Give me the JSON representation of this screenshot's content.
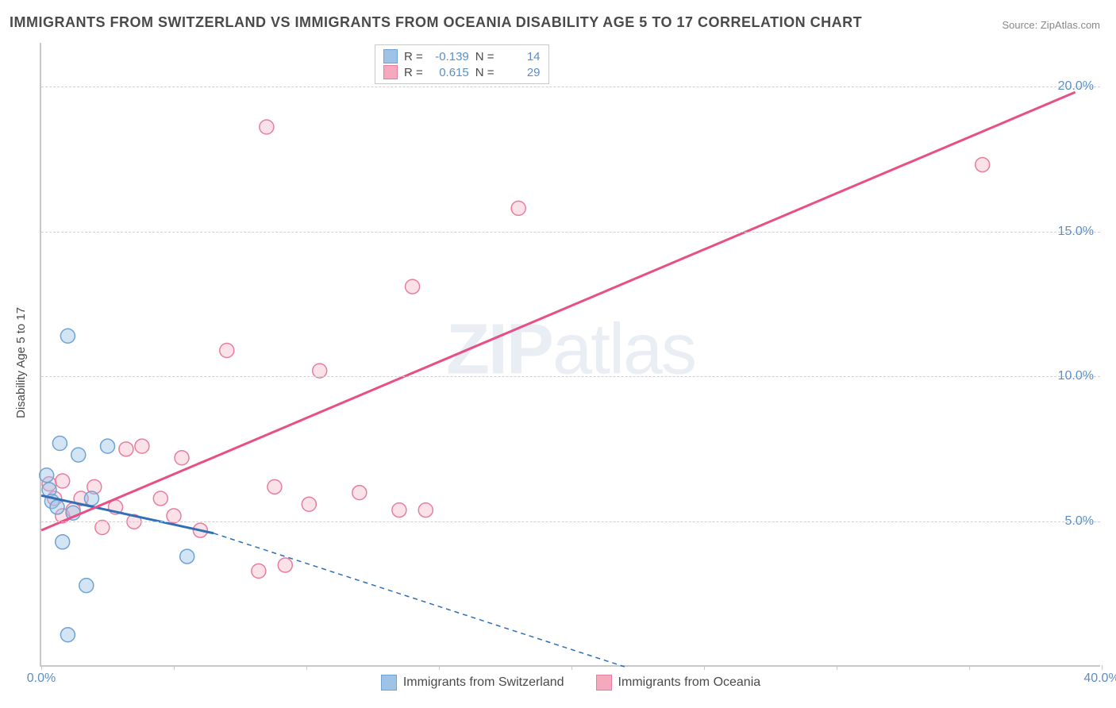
{
  "title": "IMMIGRANTS FROM SWITZERLAND VS IMMIGRANTS FROM OCEANIA DISABILITY AGE 5 TO 17 CORRELATION CHART",
  "source": "Source: ZipAtlas.com",
  "y_axis_label": "Disability Age 5 to 17",
  "watermark_bold": "ZIP",
  "watermark_light": "atlas",
  "chart": {
    "type": "scatter-with-regression",
    "xlim": [
      0,
      40
    ],
    "ylim": [
      0,
      21.5
    ],
    "x_ticks": [
      0,
      5,
      10,
      15,
      20,
      25,
      30,
      35,
      40
    ],
    "x_tick_labels": {
      "0": "0.0%",
      "40": "40.0%"
    },
    "y_ticks": [
      5,
      10,
      15,
      20
    ],
    "y_tick_labels": {
      "5": "5.0%",
      "10": "10.0%",
      "15": "15.0%",
      "20": "20.0%"
    },
    "background_color": "#ffffff",
    "grid_color": "#d0d0d0",
    "axis_color": "#c8c8c8",
    "tick_label_color": "#5b8ec4",
    "title_color": "#4a4a4a",
    "title_fontsize": 18,
    "label_fontsize": 15,
    "tick_fontsize": 16,
    "marker_radius": 9,
    "marker_stroke_width": 1.5,
    "series": [
      {
        "name": "Immigrants from Switzerland",
        "fill": "#9ec3e6",
        "fill_opacity": 0.45,
        "stroke": "#6fa3d4",
        "line_color": "#2e6fb5",
        "R": "-0.139",
        "N": "14",
        "regression_solid": {
          "x1": 0,
          "y1": 5.9,
          "x2": 6.5,
          "y2": 4.6
        },
        "regression_dashed": {
          "x1": 6.5,
          "y1": 4.6,
          "x2": 22,
          "y2": 0.0
        },
        "points": [
          [
            0.2,
            6.6
          ],
          [
            0.3,
            6.1
          ],
          [
            0.4,
            5.7
          ],
          [
            0.6,
            5.5
          ],
          [
            0.8,
            4.3
          ],
          [
            1.0,
            11.4
          ],
          [
            1.2,
            5.3
          ],
          [
            1.4,
            7.3
          ],
          [
            1.7,
            2.8
          ],
          [
            1.0,
            1.1
          ],
          [
            0.7,
            7.7
          ],
          [
            1.9,
            5.8
          ],
          [
            5.5,
            3.8
          ],
          [
            2.5,
            7.6
          ]
        ]
      },
      {
        "name": "Immigrants from Oceania",
        "fill": "#f4a9bd",
        "fill_opacity": 0.35,
        "stroke": "#e77ea0",
        "line_color": "#e94f84",
        "R": "0.615",
        "N": "29",
        "regression_solid": {
          "x1": 0,
          "y1": 4.7,
          "x2": 39,
          "y2": 19.8
        },
        "regression_dashed": null,
        "points": [
          [
            0.3,
            6.3
          ],
          [
            0.5,
            5.8
          ],
          [
            0.8,
            6.4
          ],
          [
            0.8,
            5.2
          ],
          [
            1.2,
            5.4
          ],
          [
            1.5,
            5.8
          ],
          [
            2.0,
            6.2
          ],
          [
            2.3,
            4.8
          ],
          [
            2.8,
            5.5
          ],
          [
            3.2,
            7.5
          ],
          [
            3.5,
            5.0
          ],
          [
            3.8,
            7.6
          ],
          [
            4.5,
            5.8
          ],
          [
            5.0,
            5.2
          ],
          [
            5.3,
            7.2
          ],
          [
            6.0,
            4.7
          ],
          [
            7.0,
            10.9
          ],
          [
            8.2,
            3.3
          ],
          [
            8.5,
            18.6
          ],
          [
            8.8,
            6.2
          ],
          [
            9.2,
            3.5
          ],
          [
            10.1,
            5.6
          ],
          [
            10.5,
            10.2
          ],
          [
            12.0,
            6.0
          ],
          [
            13.5,
            5.4
          ],
          [
            14.0,
            13.1
          ],
          [
            14.5,
            5.4
          ],
          [
            18.0,
            15.8
          ],
          [
            35.5,
            17.3
          ]
        ]
      }
    ]
  },
  "stat_box": {
    "R_label": "R =",
    "N_label": "N ="
  },
  "legend": [
    {
      "label": "Immigrants from Switzerland",
      "fill": "#9ec3e6",
      "stroke": "#6fa3d4"
    },
    {
      "label": "Immigrants from Oceania",
      "fill": "#f4a9bd",
      "stroke": "#e77ea0"
    }
  ]
}
